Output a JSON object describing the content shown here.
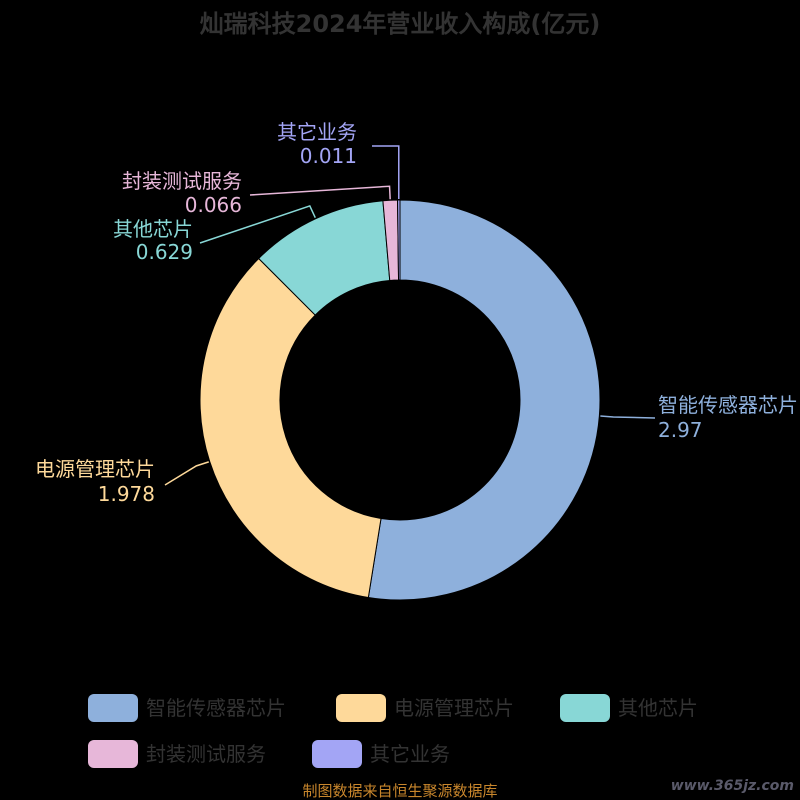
{
  "colors": {
    "background": "#000000",
    "title": "#333333",
    "legend_text": "#333333",
    "source": "#c8862c",
    "slice_border": "#000000"
  },
  "chart_data": {
    "type": "pie",
    "variant": "donut",
    "title": "灿瑞科技2024年营业收入构成(亿元)",
    "categories": [
      "智能传感器芯片",
      "电源管理芯片",
      "其他芯片",
      "封装测试服务",
      "其它业务"
    ],
    "series": [
      {
        "values": [
          2.97,
          1.978,
          0.629,
          0.066,
          0.011
        ],
        "value_labels": [
          "2.97",
          "1.978",
          "0.629",
          "0.066",
          "0.011"
        ],
        "colors": [
          "#8eb0dc",
          "#fed99a",
          "#88d7d6",
          "#e7b7d9",
          "#a3a5f5"
        ]
      }
    ],
    "legend": {
      "position": "bottom"
    },
    "source_note": "制图数据来自恒生聚源数据库",
    "watermark": "www.365jz.com"
  }
}
